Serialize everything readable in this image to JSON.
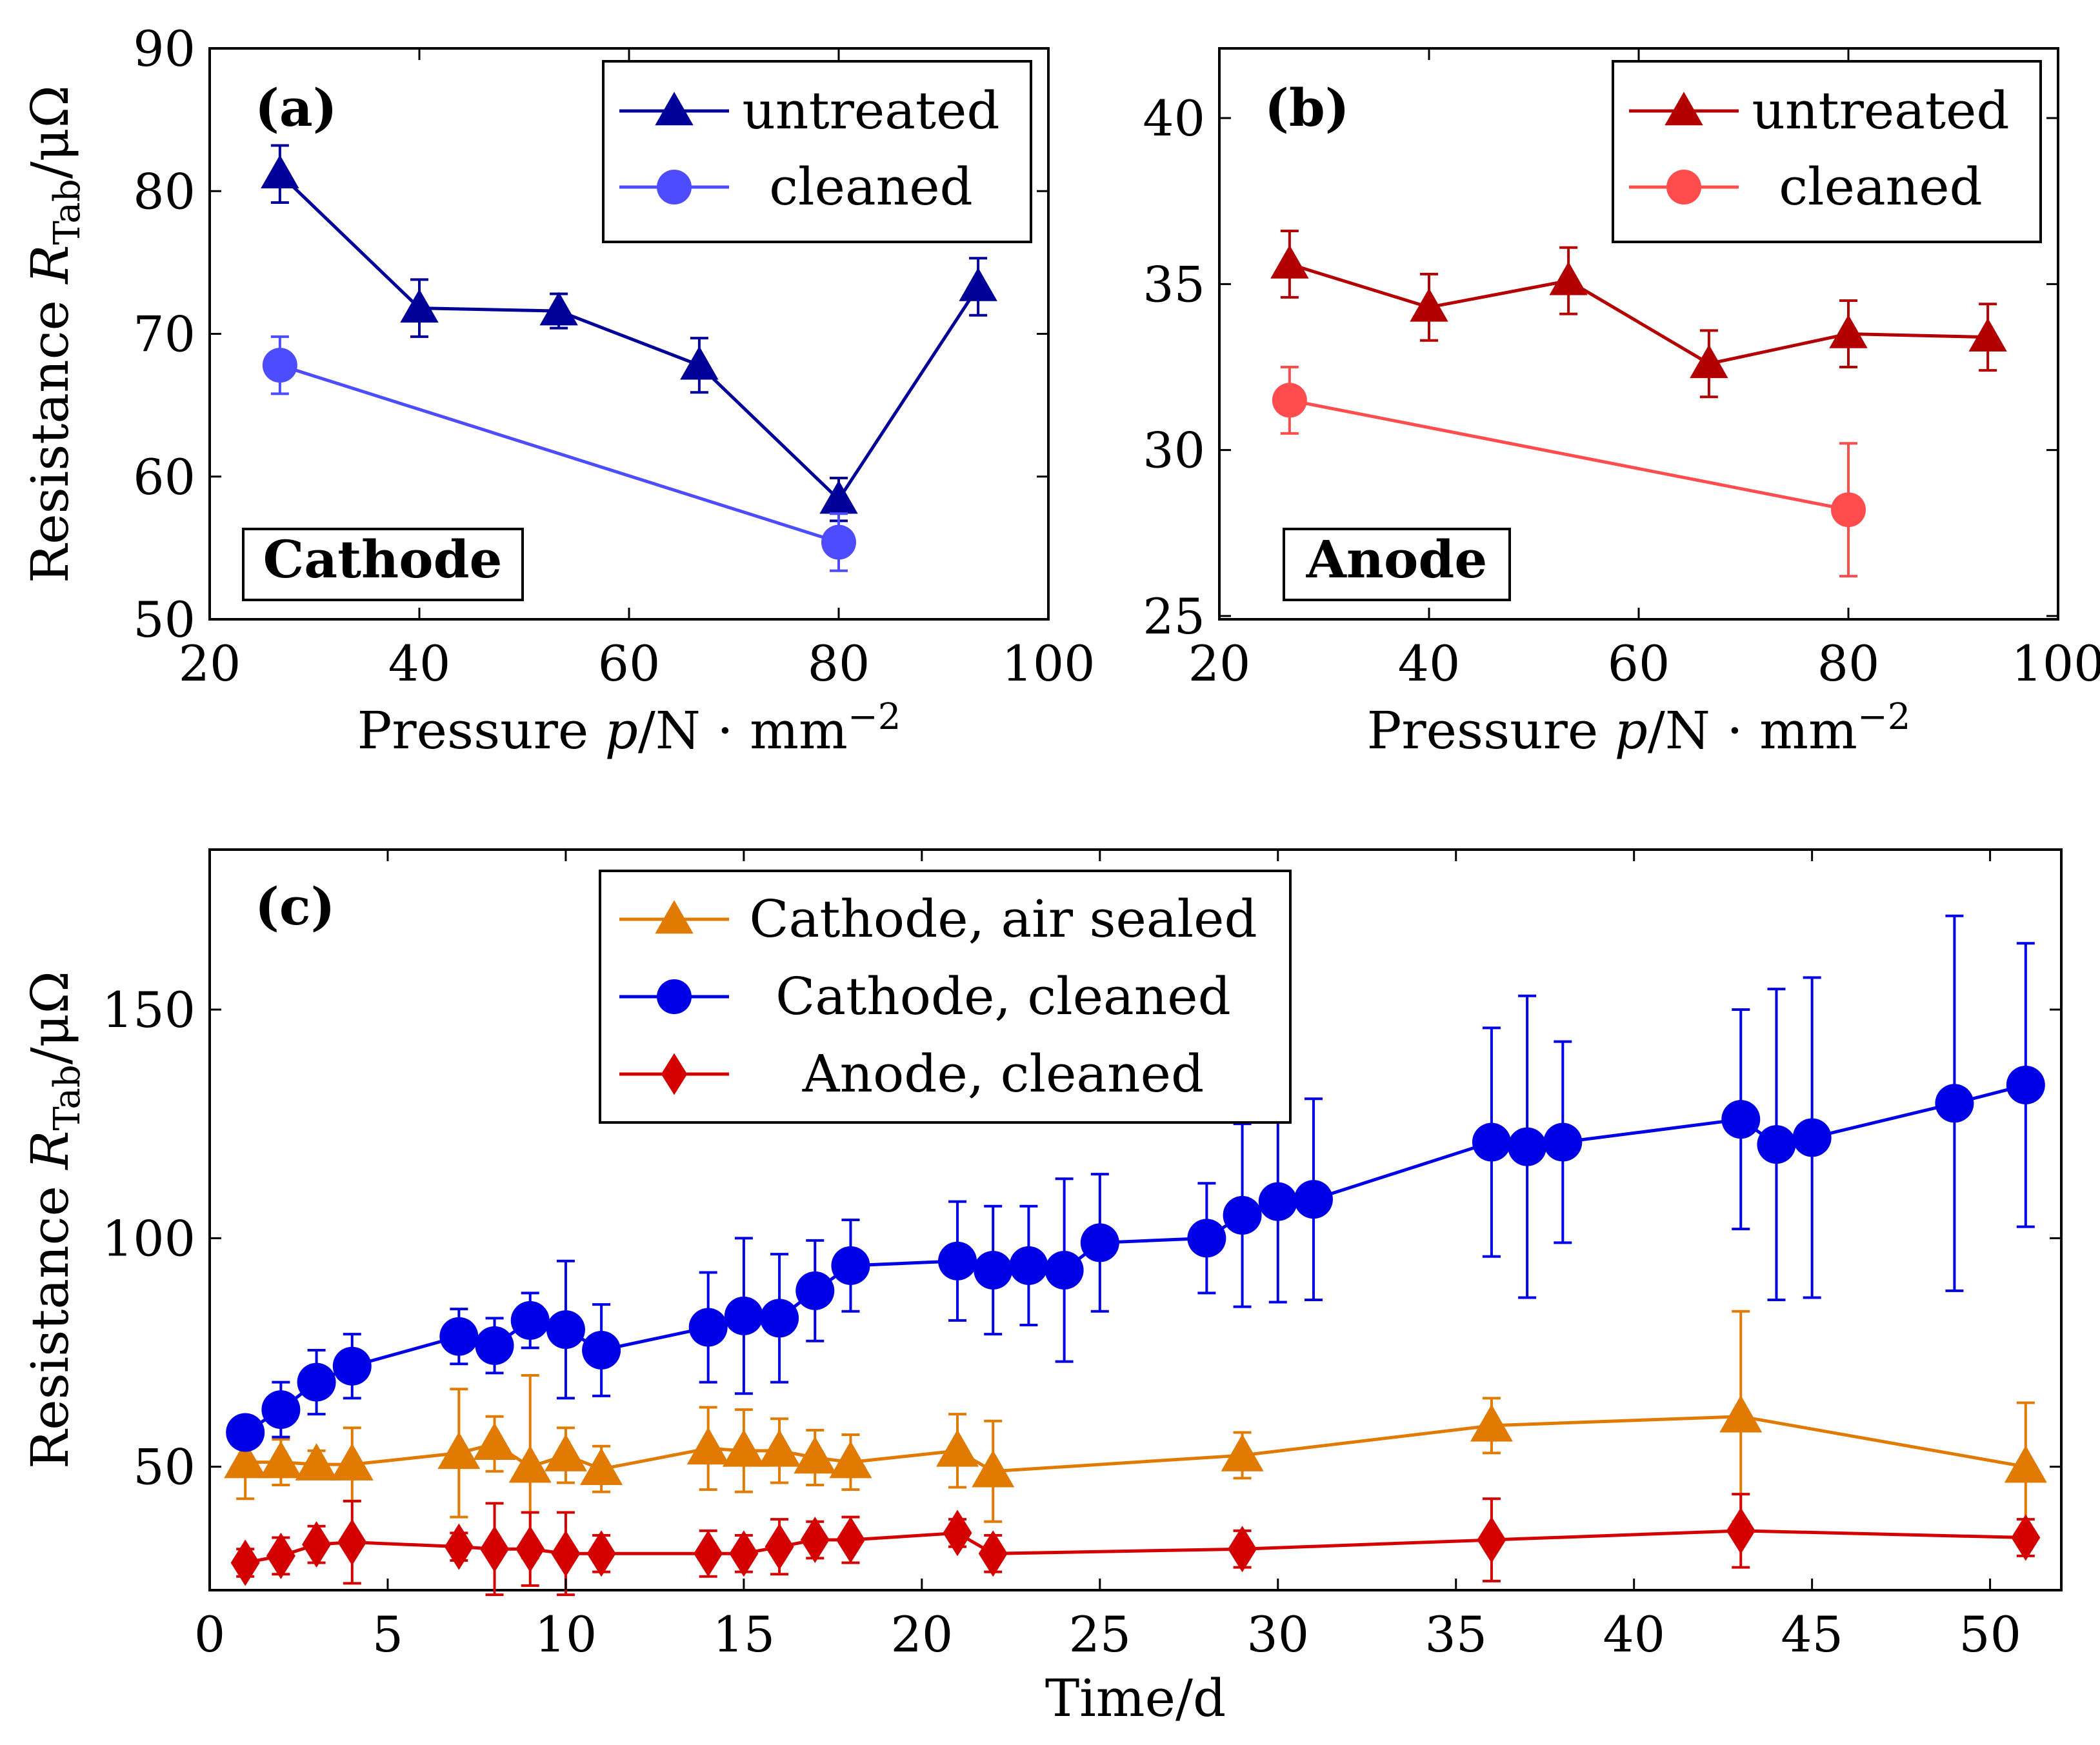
{
  "chart_data": [
    {
      "type": "line",
      "panel_label": "(a)",
      "tag": "Cathode",
      "xlabel": "Pressure p/N · mm⁻²",
      "ylabel": "Resistance R_Tab/μΩ",
      "xlim": [
        20,
        100
      ],
      "ylim": [
        50,
        90
      ],
      "xticks": [
        "20",
        "40",
        "60",
        "80",
        "100"
      ],
      "yticks": [
        "50",
        "60",
        "70",
        "80",
        "90"
      ],
      "legend_position": "top-right",
      "series": [
        {
          "name": "untreated",
          "color": "#000099",
          "marker": "triangle",
          "x": [
            26.7,
            40,
            53.3,
            66.7,
            80,
            93.3
          ],
          "y": [
            81.2,
            71.8,
            71.6,
            67.8,
            58.4,
            73.3
          ],
          "err": [
            2.0,
            2.0,
            1.2,
            1.9,
            1.5,
            2.0
          ]
        },
        {
          "name": "cleaned",
          "color": "#4d4dff",
          "marker": "circle",
          "x": [
            26.7,
            80
          ],
          "y": [
            67.8,
            55.4
          ],
          "err": [
            2.0,
            2.0
          ]
        }
      ]
    },
    {
      "type": "line",
      "panel_label": "(b)",
      "tag": "Anode",
      "xlabel": "Pressure p/N · mm⁻²",
      "ylabel": "",
      "xlim": [
        20,
        100
      ],
      "ylim": [
        24.9,
        42.1
      ],
      "xticks": [
        "20",
        "40",
        "60",
        "80",
        "100"
      ],
      "yticks": [
        "25",
        "30",
        "35",
        "40"
      ],
      "legend_position": "top-right",
      "series": [
        {
          "name": "untreated",
          "color": "#b30000",
          "marker": "triangle",
          "x": [
            26.7,
            40,
            53.3,
            66.7,
            80,
            93.3
          ],
          "y": [
            35.6,
            34.3,
            35.1,
            32.6,
            33.5,
            33.4
          ],
          "err": [
            1.0,
            1.0,
            1.0,
            1.0,
            1.0,
            1.0
          ]
        },
        {
          "name": "cleaned",
          "color": "#ff4d4d",
          "marker": "circle",
          "x": [
            26.7,
            80
          ],
          "y": [
            31.5,
            28.2
          ],
          "err": [
            1.0,
            2.0
          ]
        }
      ]
    },
    {
      "type": "line",
      "panel_label": "(c)",
      "xlabel": "Time/d",
      "ylabel": "Resistance R_Tab/μΩ",
      "xlim": [
        0,
        52
      ],
      "ylim": [
        23,
        185
      ],
      "xticks": [
        "0",
        "5",
        "10",
        "15",
        "20",
        "25",
        "30",
        "35",
        "40",
        "45",
        "50"
      ],
      "yticks": [
        "50",
        "100",
        "150"
      ],
      "legend_position": "top-center",
      "series": [
        {
          "name": "Cathode, air sealed",
          "color": "#e07a00",
          "marker": "triangle",
          "x": [
            1,
            2,
            3,
            4,
            7,
            8,
            9,
            10,
            11,
            14,
            15,
            16,
            17,
            18,
            21,
            22,
            29,
            36,
            43,
            51
          ],
          "y": [
            51,
            51,
            50.5,
            50.5,
            53,
            55,
            50,
            52.5,
            49.5,
            54,
            53.5,
            53.5,
            52,
            51,
            53.5,
            49,
            52.5,
            59,
            61,
            50
          ],
          "err": [
            8,
            5,
            3,
            8,
            14,
            6,
            20,
            6,
            5,
            9,
            9,
            7,
            6,
            6,
            8,
            11,
            5,
            6,
            23,
            14
          ]
        },
        {
          "name": "Cathode, cleaned",
          "color": "#0000e6",
          "marker": "circle",
          "x": [
            1,
            2,
            3,
            4,
            7,
            8,
            9,
            10,
            11,
            14,
            15,
            16,
            17,
            18,
            21,
            22,
            23,
            24,
            25,
            28,
            29,
            30,
            31,
            36,
            37,
            38,
            43,
            44,
            45,
            49,
            51
          ],
          "y": [
            57.5,
            62.5,
            68.5,
            72,
            78.5,
            76.5,
            82,
            80,
            75.5,
            80.5,
            83,
            82.5,
            88.5,
            94,
            95,
            93,
            94,
            93,
            99,
            100,
            105,
            108,
            108.5,
            121,
            120,
            121,
            126,
            120.5,
            122,
            129.5,
            133.5
          ],
          "err": [
            3,
            6,
            7,
            7,
            6,
            6,
            6,
            15,
            10,
            12,
            17,
            14,
            11,
            10,
            13,
            14,
            13,
            20,
            15,
            12,
            20,
            22,
            22,
            25,
            33,
            22,
            24,
            34,
            35,
            41,
            31
          ]
        },
        {
          "name": "Anode, cleaned",
          "color": "#d40000",
          "marker": "diamond",
          "x": [
            1,
            2,
            3,
            4,
            7,
            8,
            9,
            10,
            11,
            14,
            15,
            16,
            17,
            18,
            21,
            22,
            29,
            36,
            43,
            51
          ],
          "y": [
            29,
            30.5,
            33,
            33.5,
            32.5,
            32,
            32,
            31,
            31,
            31,
            31,
            32.5,
            34,
            34,
            35.5,
            31,
            32,
            34,
            36,
            34.5
          ],
          "err": [
            3,
            4,
            4,
            9,
            3,
            10,
            8,
            9,
            4,
            5,
            4,
            6,
            4,
            5,
            3,
            4,
            4,
            9,
            8,
            4
          ]
        }
      ]
    }
  ]
}
